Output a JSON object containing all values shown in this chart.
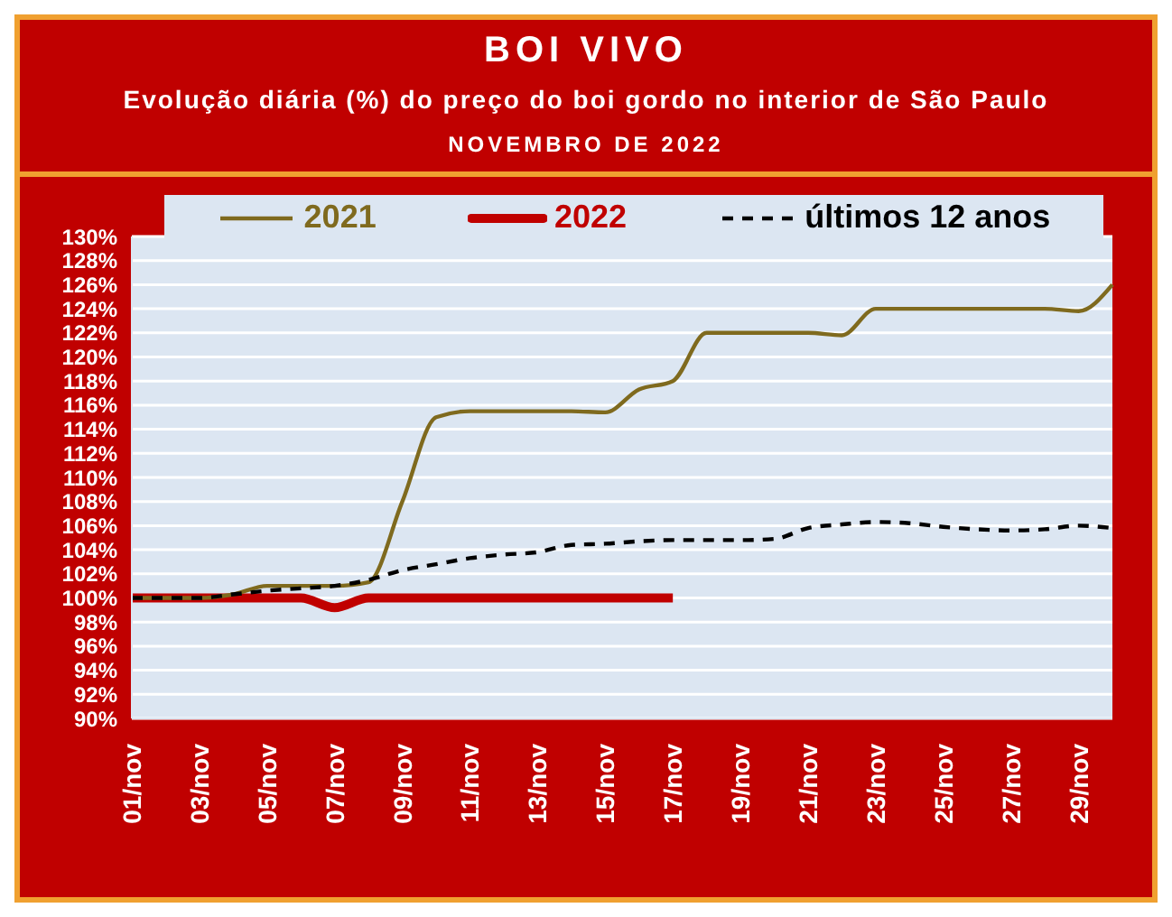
{
  "chart_data": {
    "type": "line",
    "title": "BOI VIVO",
    "subtitle": "Evolução diária (%) do preço do boi gordo no interior de São Paulo",
    "annotations": [
      "NOVEMBRO DE 2022"
    ],
    "categories": [
      "01/nov",
      null,
      "03/nov",
      null,
      "05/nov",
      null,
      "07/nov",
      null,
      "09/nov",
      null,
      "11/nov",
      null,
      "13/nov",
      null,
      "15/nov",
      null,
      "17/nov",
      null,
      "19/nov",
      null,
      "21/nov",
      null,
      "23/nov",
      null,
      "25/nov",
      null,
      "27/nov",
      null,
      "29/nov",
      null
    ],
    "series": [
      {
        "name": "2021",
        "color": "#7f6a1e",
        "values": [
          100,
          100,
          100,
          100.3,
          101,
          101,
          101,
          101.3,
          108,
          115,
          115.5,
          115.5,
          115.5,
          115.5,
          115.4,
          117.3,
          118,
          122,
          122,
          122,
          122,
          121.8,
          124,
          124,
          124,
          124,
          124,
          124,
          123.8,
          126
        ]
      },
      {
        "name": "2022",
        "color": "#c00000",
        "values": [
          100,
          100,
          100,
          100,
          100,
          100,
          99.2,
          100,
          100,
          100,
          100,
          100,
          100,
          100,
          100,
          100,
          100,
          null,
          null,
          null,
          null,
          null,
          null,
          null,
          null,
          null,
          null,
          null,
          null,
          null
        ]
      },
      {
        "name": "últimos 12 anos",
        "color": "#000000",
        "line_style": "dashed",
        "values": [
          100,
          100,
          100,
          100.3,
          100.6,
          100.8,
          101,
          101.5,
          102.3,
          102.8,
          103.3,
          103.6,
          103.8,
          104.4,
          104.5,
          104.7,
          104.8,
          104.8,
          104.8,
          104.9,
          105.8,
          106.1,
          106.3,
          106.2,
          105.9,
          105.7,
          105.6,
          105.7,
          106,
          105.8
        ]
      }
    ],
    "ylim": [
      90,
      130
    ],
    "yticks": [
      {
        "value": 90,
        "label": "90%"
      },
      {
        "value": 92,
        "label": "92%"
      },
      {
        "value": 94,
        "label": "94%"
      },
      {
        "value": 96,
        "label": "96%"
      },
      {
        "value": 98,
        "label": "98%"
      },
      {
        "value": 100,
        "label": "100%"
      },
      {
        "value": 102,
        "label": "102%"
      },
      {
        "value": 104,
        "label": "104%"
      },
      {
        "value": 106,
        "label": "106%"
      },
      {
        "value": 108,
        "label": "108%"
      },
      {
        "value": 110,
        "label": "110%"
      },
      {
        "value": 112,
        "label": "112%"
      },
      {
        "value": 114,
        "label": "114%"
      },
      {
        "value": 116,
        "label": "116%"
      },
      {
        "value": 118,
        "label": "118%"
      },
      {
        "value": 120,
        "label": "120%"
      },
      {
        "value": 122,
        "label": "122%"
      },
      {
        "value": 124,
        "label": "124%"
      },
      {
        "value": 126,
        "label": "126%"
      },
      {
        "value": 128,
        "label": "128%"
      },
      {
        "value": 130,
        "label": "130%"
      }
    ],
    "grid": "y",
    "legend": "top",
    "marker": "none",
    "line_style": "solid"
  }
}
